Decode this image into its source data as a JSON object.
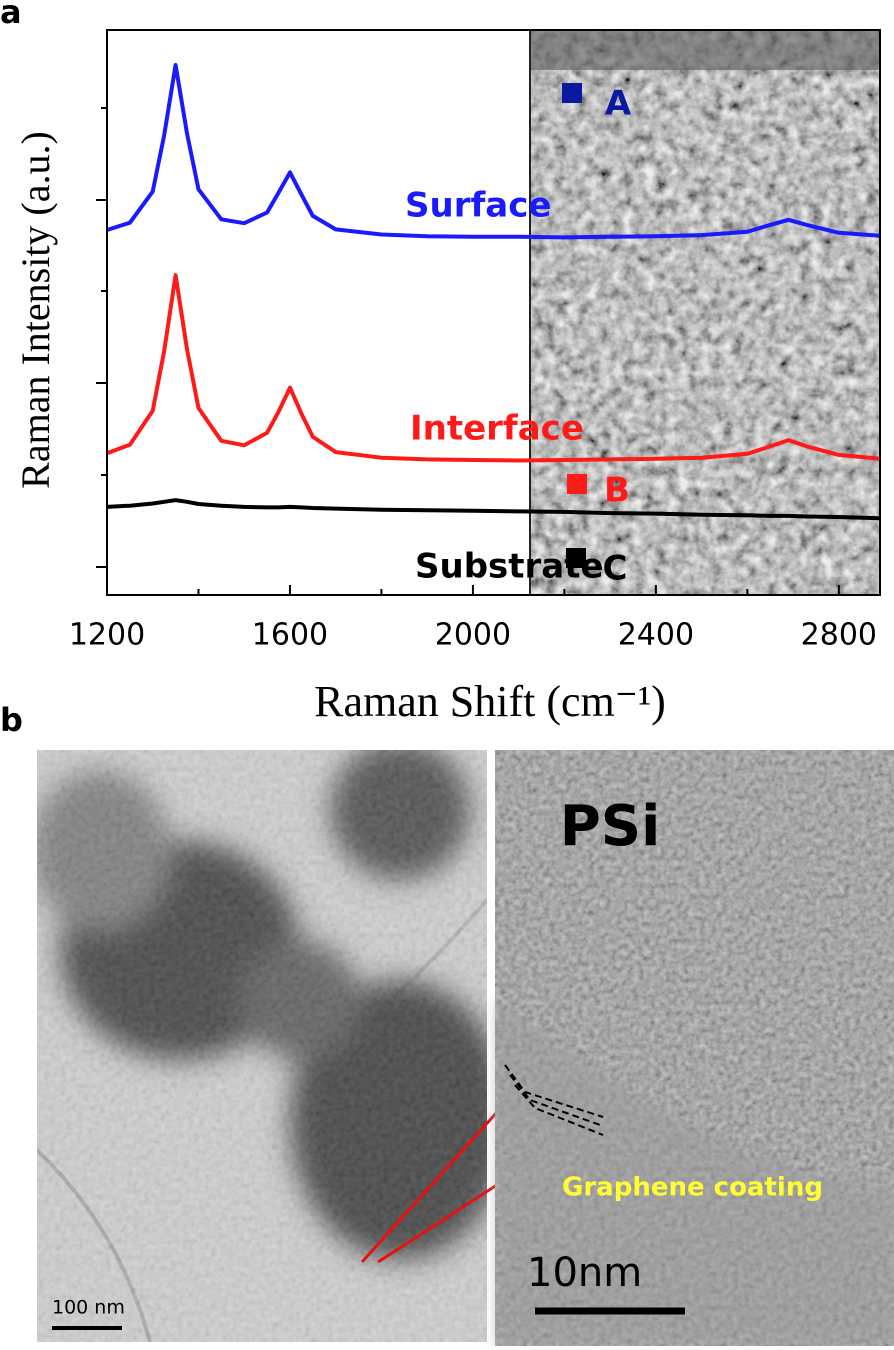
{
  "chart_data": {
    "type": "line",
    "x_label": "Raman Shift (cm⁻¹)",
    "y_label": "Raman Intensity (a.u.)",
    "x": [
      1200,
      1250,
      1300,
      1325,
      1350,
      1375,
      1400,
      1450,
      1500,
      1550,
      1575,
      1600,
      1625,
      1650,
      1700,
      1800,
      1900,
      2000,
      2100,
      2200,
      2300,
      2400,
      2500,
      2600,
      2650,
      2690,
      2730,
      2800,
      2890
    ],
    "series": [
      {
        "name": "Surface",
        "color": "#1a1aff",
        "values": [
          64.6,
          65.9,
          71.4,
          81.4,
          93.8,
          81.7,
          71.8,
          66.5,
          65.8,
          67.7,
          71.2,
          74.8,
          70.9,
          67.1,
          64.7,
          63.8,
          63.5,
          63.4,
          63.4,
          63.3,
          63.4,
          63.5,
          63.7,
          64.3,
          65.5,
          66.4,
          65.5,
          64.1,
          63.6
        ]
      },
      {
        "name": "Interface",
        "color": "#ff1a1a",
        "values": [
          25.1,
          26.6,
          32.6,
          43.2,
          56.6,
          43.5,
          33.1,
          27.3,
          26.5,
          28.7,
          32.4,
          36.7,
          32.1,
          28.0,
          25.3,
          24.3,
          24.0,
          23.9,
          23.8,
          23.9,
          24.0,
          24.1,
          24.3,
          25.0,
          26.3,
          27.4,
          26.3,
          24.8,
          24.1
        ]
      },
      {
        "name": "Substrate",
        "color": "#000000",
        "values": [
          15.6,
          15.8,
          16.2,
          16.5,
          16.8,
          16.5,
          16.1,
          15.8,
          15.6,
          15.5,
          15.5,
          15.6,
          15.5,
          15.4,
          15.3,
          15.1,
          15.0,
          14.9,
          14.8,
          14.7,
          14.5,
          14.4,
          14.2,
          14.1,
          14.0,
          14.0,
          13.9,
          13.8,
          13.6
        ]
      }
    ],
    "xlim": [
      1200,
      2890
    ],
    "ylim": [
      0,
      100
    ],
    "xticks": [
      1200,
      1600,
      2000,
      2400,
      2800
    ]
  },
  "panel_labels": [
    "a",
    "b"
  ],
  "sem_markers": [
    {
      "label": "A",
      "color": "#0a1aa0"
    },
    {
      "label": "B",
      "color": "#ff1a1a"
    },
    {
      "label": "C",
      "color": "#000000"
    }
  ],
  "tem": {
    "psi_label": "PSi",
    "coating_label": "Graphene coating",
    "scale_left": "100 nm",
    "scale_right": "10nm"
  }
}
